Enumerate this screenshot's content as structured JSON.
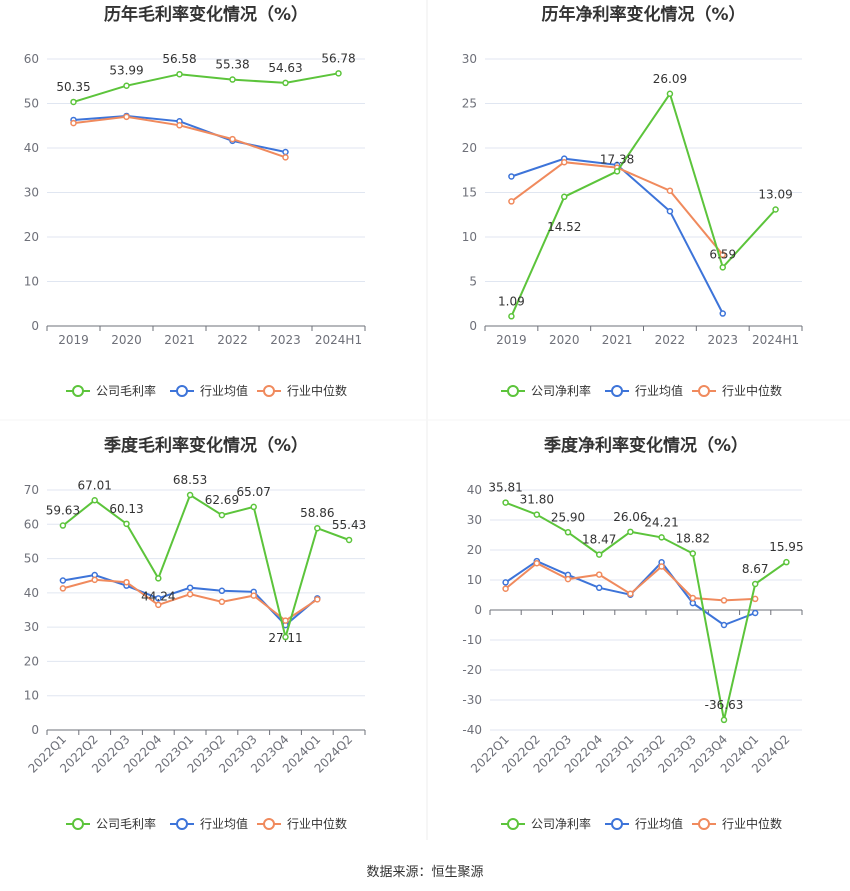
{
  "source": "数据来源：恒生聚源",
  "colors": {
    "company": "#5cc43b",
    "avg": "#3d74d9",
    "median": "#f08a5d",
    "axis": "#6e7079",
    "grid": "#e0e6f1"
  },
  "chart_data": [
    {
      "type": "line",
      "title": "历年毛利率变化情况（%）",
      "categories": [
        "2019",
        "2020",
        "2021",
        "2022",
        "2023",
        "2024H1"
      ],
      "ylim": [
        0,
        60
      ],
      "yticks": [
        0,
        10,
        20,
        30,
        40,
        50,
        60
      ],
      "grid": true,
      "legend_position": "bottom",
      "series": [
        {
          "name": "公司毛利率",
          "key": "company",
          "values": [
            50.35,
            53.99,
            56.58,
            55.38,
            54.63,
            56.78
          ],
          "labels": [
            "50.35",
            "53.99",
            "56.58",
            "55.38",
            "54.63",
            "56.78"
          ]
        },
        {
          "name": "行业均值",
          "key": "avg",
          "values": [
            46.3,
            47.2,
            46.0,
            41.6,
            39.1,
            null
          ]
        },
        {
          "name": "行业中位数",
          "key": "median",
          "values": [
            45.6,
            47.0,
            45.1,
            42.0,
            37.9,
            null
          ]
        }
      ]
    },
    {
      "type": "line",
      "title": "历年净利率变化情况（%）",
      "categories": [
        "2019",
        "2020",
        "2021",
        "2022",
        "2023",
        "2024H1"
      ],
      "ylim": [
        0,
        30
      ],
      "yticks": [
        0,
        5,
        10,
        15,
        20,
        25,
        30
      ],
      "grid": true,
      "legend_position": "bottom",
      "series": [
        {
          "name": "公司净利率",
          "key": "company",
          "values": [
            1.09,
            14.52,
            17.38,
            26.09,
            6.59,
            13.09
          ],
          "labels": [
            "1.09",
            "14.52",
            "17.38",
            "26.09",
            "6.59",
            "13.09"
          ]
        },
        {
          "name": "行业均值",
          "key": "avg",
          "values": [
            16.8,
            18.8,
            18.1,
            12.9,
            1.4,
            null
          ]
        },
        {
          "name": "行业中位数",
          "key": "median",
          "values": [
            14.0,
            18.4,
            17.8,
            15.2,
            8.0,
            null
          ]
        }
      ]
    },
    {
      "type": "line",
      "title": "季度毛利率变化情况（%）",
      "categories": [
        "2022Q1",
        "2022Q2",
        "2022Q3",
        "2022Q4",
        "2023Q1",
        "2023Q2",
        "2023Q3",
        "2023Q4",
        "2024Q1",
        "2024Q2"
      ],
      "ylim": [
        0,
        70
      ],
      "yticks": [
        0,
        10,
        20,
        30,
        40,
        50,
        60,
        70
      ],
      "grid": true,
      "legend_position": "bottom",
      "series": [
        {
          "name": "公司毛利率",
          "key": "company",
          "values": [
            59.63,
            67.01,
            60.13,
            44.24,
            68.53,
            62.69,
            65.07,
            27.11,
            58.86,
            55.43
          ],
          "labels": [
            "59.63",
            "67.01",
            "60.13",
            "44.24",
            "68.53",
            "62.69",
            "65.07",
            "27.11",
            "58.86",
            "55.43"
          ]
        },
        {
          "name": "行业均值",
          "key": "avg",
          "values": [
            43.6,
            45.2,
            42.1,
            38.4,
            41.5,
            40.6,
            40.3,
            30.6,
            38.4,
            null
          ]
        },
        {
          "name": "行业中位数",
          "key": "median",
          "values": [
            41.3,
            43.8,
            43.1,
            36.5,
            39.6,
            37.4,
            39.2,
            31.9,
            38.1,
            null
          ]
        }
      ]
    },
    {
      "type": "line",
      "title": "季度净利率变化情况（%）",
      "categories": [
        "2022Q1",
        "2022Q2",
        "2022Q3",
        "2022Q4",
        "2023Q1",
        "2023Q2",
        "2023Q3",
        "2023Q4",
        "2024Q1",
        "2024Q2"
      ],
      "ylim": [
        -40,
        40
      ],
      "yticks": [
        -40,
        -30,
        -20,
        -10,
        0,
        10,
        20,
        30,
        40
      ],
      "grid": true,
      "legend_position": "bottom",
      "series": [
        {
          "name": "公司净利率",
          "key": "company",
          "values": [
            35.81,
            31.8,
            25.9,
            18.47,
            26.06,
            24.21,
            18.82,
            -36.63,
            8.67,
            15.95
          ],
          "labels": [
            "35.81",
            "31.80",
            "25.90",
            "18.47",
            "26.06",
            "24.21",
            "18.82",
            "-36.63",
            "8.67",
            "15.95"
          ]
        },
        {
          "name": "行业均值",
          "key": "avg",
          "values": [
            9.2,
            16.3,
            11.7,
            7.4,
            5.1,
            15.9,
            2.3,
            -5.0,
            -1.0,
            null
          ]
        },
        {
          "name": "行业中位数",
          "key": "median",
          "values": [
            7.1,
            15.6,
            10.3,
            11.8,
            5.4,
            14.5,
            4.0,
            3.2,
            3.7,
            null
          ]
        }
      ]
    }
  ]
}
